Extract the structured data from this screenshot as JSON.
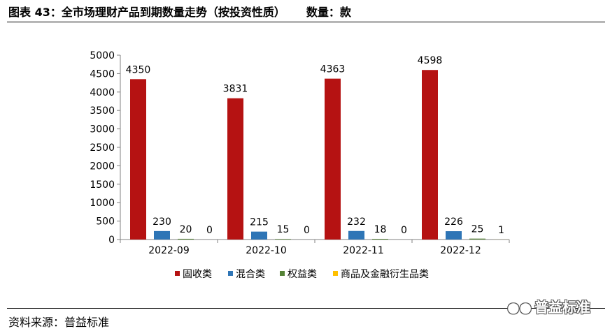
{
  "header": {
    "title": "图表 43：全市场理财产品到期数量走势（按投资性质）",
    "unit": "数量：款"
  },
  "footer": {
    "source": "资料来源：普益标准",
    "watermark": "普益标准",
    "watermark_icon": "wechat-icon"
  },
  "chart_data": {
    "type": "bar",
    "categories": [
      "2022-09",
      "2022-10",
      "2022-11",
      "2022-12"
    ],
    "series": [
      {
        "name": "固收类",
        "color": "#B51212",
        "values": [
          4350,
          3831,
          4363,
          4598
        ]
      },
      {
        "name": "混合类",
        "color": "#2E75B6",
        "values": [
          230,
          215,
          232,
          226
        ]
      },
      {
        "name": "权益类",
        "color": "#548235",
        "values": [
          20,
          15,
          18,
          25
        ]
      },
      {
        "name": "商品及金融衍生品类",
        "color": "#FFC000",
        "values": [
          0,
          0,
          0,
          1
        ]
      }
    ],
    "yticks": [
      "0",
      "500",
      "1000",
      "1500",
      "2000",
      "2500",
      "3000",
      "3500",
      "4000",
      "4500",
      "5000"
    ],
    "ylim": [
      0,
      5000
    ],
    "grid": false,
    "legend_position": "bottom"
  }
}
